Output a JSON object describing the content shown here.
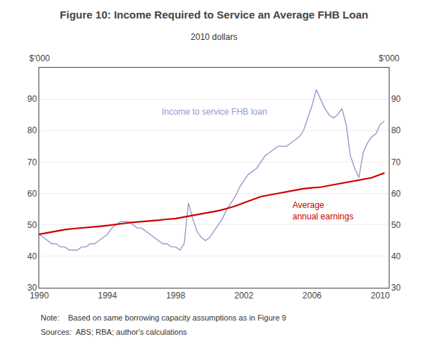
{
  "chart_data": {
    "type": "line",
    "title": "Figure 10: Income Required to Service an Average FHB Loan",
    "subtitle": "2010 dollars",
    "ylabel_left": "$'000",
    "ylabel_right": "$'000",
    "annotations": [
      {
        "text": "Income to service FHB loan",
        "series": "fhb"
      },
      {
        "text": "Average\nannual earnings",
        "series": "earnings"
      }
    ],
    "note": "Note:    Based on same borrowing capacity assumptions as in Figure 9",
    "sources": "Sources:  ABS; RBA; author's calculations",
    "xlim": [
      1990.0,
      2010.5
    ],
    "xticks": [
      1990,
      1994,
      1998,
      2002,
      2006,
      2010
    ],
    "ylim": [
      30,
      100
    ],
    "yticks": [
      30,
      40,
      50,
      60,
      70,
      80,
      90
    ],
    "y2lim": [
      30,
      100
    ],
    "y2ticks": [
      30,
      40,
      50,
      60,
      70,
      80,
      90
    ],
    "grid": true,
    "series": [
      {
        "id": "fhb",
        "color": "#9999cc",
        "x": [
          1990.0,
          1990.25,
          1990.5,
          1990.75,
          1991.0,
          1991.25,
          1991.5,
          1991.75,
          1992.0,
          1992.25,
          1992.5,
          1992.75,
          1993.0,
          1993.25,
          1993.5,
          1993.75,
          1994.0,
          1994.25,
          1994.5,
          1994.75,
          1995.0,
          1995.25,
          1995.5,
          1995.75,
          1996.0,
          1996.25,
          1996.5,
          1996.75,
          1997.0,
          1997.25,
          1997.5,
          1997.75,
          1998.0,
          1998.25,
          1998.5,
          1998.75,
          1999.0,
          1999.25,
          1999.5,
          1999.75,
          2000.0,
          2000.25,
          2000.5,
          2000.75,
          2001.0,
          2001.25,
          2001.5,
          2001.75,
          2002.0,
          2002.25,
          2002.5,
          2002.75,
          2003.0,
          2003.25,
          2003.5,
          2003.75,
          2004.0,
          2004.25,
          2004.5,
          2004.75,
          2005.0,
          2005.25,
          2005.5,
          2005.75,
          2006.0,
          2006.25,
          2006.5,
          2006.75,
          2007.0,
          2007.25,
          2007.5,
          2007.75,
          2008.0,
          2008.25,
          2008.5,
          2008.75,
          2009.0,
          2009.25,
          2009.5,
          2009.75,
          2010.0,
          2010.25
        ],
        "values": [
          47,
          46,
          45,
          44,
          44,
          43,
          43,
          42,
          42,
          42,
          43,
          43,
          44,
          44,
          45,
          46,
          47,
          49,
          50,
          51,
          51,
          51,
          50,
          49,
          49,
          48,
          47,
          46,
          45,
          44,
          44,
          43,
          43,
          42,
          44,
          57,
          52,
          48,
          46,
          45,
          46,
          48,
          50,
          52,
          55,
          57,
          59,
          62,
          64,
          66,
          67,
          68,
          70,
          72,
          73,
          74,
          75,
          75,
          75,
          76,
          77,
          78,
          80,
          84,
          88,
          93,
          90,
          87,
          85,
          84,
          85,
          87,
          82,
          72,
          68,
          65,
          73,
          76,
          78,
          79,
          82,
          83
        ]
      },
      {
        "id": "earnings",
        "color": "#cc0000",
        "x": [
          1990.0,
          1990.5,
          1991.0,
          1991.5,
          1992.0,
          1992.5,
          1993.0,
          1993.5,
          1994.0,
          1994.5,
          1995.0,
          1995.5,
          1996.0,
          1996.5,
          1997.0,
          1997.5,
          1998.0,
          1998.5,
          1999.0,
          1999.5,
          2000.0,
          2000.5,
          2001.0,
          2001.5,
          2002.0,
          2002.5,
          2003.0,
          2003.5,
          2004.0,
          2004.5,
          2005.0,
          2005.5,
          2006.0,
          2006.5,
          2007.0,
          2007.5,
          2008.0,
          2008.5,
          2009.0,
          2009.5,
          2010.0,
          2010.25
        ],
        "values": [
          47,
          47.5,
          48,
          48.5,
          48.8,
          49,
          49.2,
          49.5,
          49.8,
          50.2,
          50.5,
          50.8,
          51,
          51.3,
          51.5,
          51.8,
          52,
          52.5,
          53,
          53.5,
          54,
          54.5,
          55.2,
          56,
          57,
          58,
          59,
          59.5,
          60,
          60.5,
          61,
          61.5,
          61.8,
          62,
          62.5,
          63,
          63.5,
          64,
          64.5,
          65,
          66,
          66.5
        ]
      }
    ]
  }
}
